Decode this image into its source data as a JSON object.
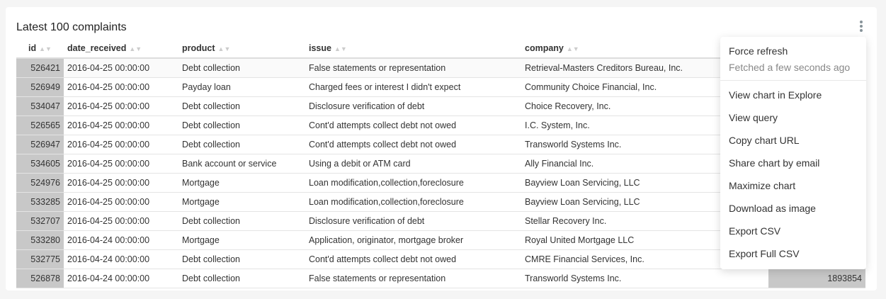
{
  "title": "Latest 100 complaints",
  "columns": [
    "id",
    "date_received",
    "product",
    "issue",
    "company"
  ],
  "rows": [
    [
      "526421",
      "2016-04-25 00:00:00",
      "Debt collection",
      "False statements or representation",
      "Retrieval-Masters Creditors Bureau, Inc.",
      ""
    ],
    [
      "526949",
      "2016-04-25 00:00:00",
      "Payday loan",
      "Charged fees or interest I didn't expect",
      "Community Choice Financial, Inc.",
      ""
    ],
    [
      "534047",
      "2016-04-25 00:00:00",
      "Debt collection",
      "Disclosure verification of debt",
      "Choice Recovery, Inc.",
      ""
    ],
    [
      "526565",
      "2016-04-25 00:00:00",
      "Debt collection",
      "Cont'd attempts collect debt not owed",
      "I.C. System, Inc.",
      ""
    ],
    [
      "526947",
      "2016-04-25 00:00:00",
      "Debt collection",
      "Cont'd attempts collect debt not owed",
      "Transworld Systems Inc.",
      ""
    ],
    [
      "534605",
      "2016-04-25 00:00:00",
      "Bank account or service",
      "Using a debit or ATM card",
      "Ally Financial Inc.",
      ""
    ],
    [
      "524976",
      "2016-04-25 00:00:00",
      "Mortgage",
      "Loan modification,collection,foreclosure",
      "Bayview Loan Servicing, LLC",
      ""
    ],
    [
      "533285",
      "2016-04-25 00:00:00",
      "Mortgage",
      "Loan modification,collection,foreclosure",
      "Bayview Loan Servicing, LLC",
      ""
    ],
    [
      "532707",
      "2016-04-25 00:00:00",
      "Debt collection",
      "Disclosure verification of debt",
      "Stellar Recovery Inc.",
      ""
    ],
    [
      "533280",
      "2016-04-24 00:00:00",
      "Mortgage",
      "Application, originator, mortgage broker",
      "Royal United Mortgage LLC",
      ""
    ],
    [
      "532775",
      "2016-04-24 00:00:00",
      "Debt collection",
      "Cont'd attempts collect debt not owed",
      "CMRE Financial Services, Inc.",
      ""
    ],
    [
      "526878",
      "2016-04-24 00:00:00",
      "Debt collection",
      "False statements or representation",
      "Transworld Systems Inc.",
      "1893854"
    ]
  ],
  "menu": {
    "force_refresh": "Force refresh",
    "fetched": "Fetched a few seconds ago",
    "items": [
      "View chart in Explore",
      "View query",
      "Copy chart URL",
      "Share chart by email",
      "Maximize chart",
      "Download as image",
      "Export CSV",
      "Export Full CSV"
    ]
  },
  "colors": {
    "bar": "#c8c8c8",
    "menu_icon": "#879399"
  }
}
